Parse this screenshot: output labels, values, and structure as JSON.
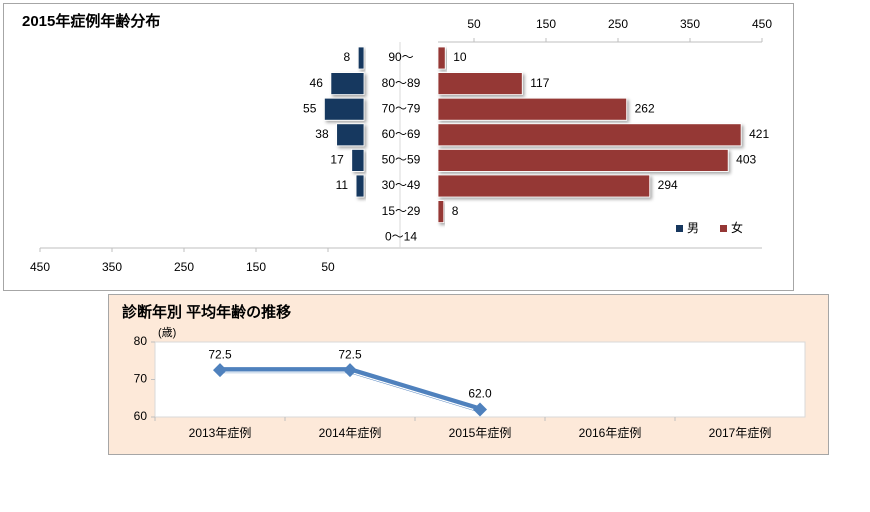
{
  "chart_data": [
    {
      "type": "pyramid",
      "title": "2015年症例年齢分布",
      "categories": [
        "90〜",
        "80〜89",
        "70〜79",
        "60〜69",
        "50〜59",
        "30〜49",
        "15〜29",
        "0〜14"
      ],
      "series": [
        {
          "name": "男",
          "color": "#17375e",
          "values": [
            8,
            46,
            55,
            38,
            17,
            11,
            null,
            null
          ]
        },
        {
          "name": "女",
          "color": "#953735",
          "values": [
            10,
            117,
            262,
            421,
            403,
            294,
            8,
            null
          ]
        }
      ],
      "xlim": [
        0,
        450
      ],
      "xticks": [
        50,
        150,
        250,
        350,
        450
      ],
      "legend": "lower right"
    },
    {
      "type": "line",
      "title": "診断年別  平均年齢の推移",
      "ylabel": "(歳)",
      "categories": [
        "2013年症例",
        "2014年症例",
        "2015年症例",
        "2016年症例",
        "2017年症例"
      ],
      "values": [
        72.5,
        72.5,
        62.0,
        null,
        null
      ],
      "value_labels": [
        "72.5",
        "72.5",
        "62.0",
        null,
        null
      ],
      "color": "#4f81bd",
      "ylim": [
        60,
        80
      ],
      "yticks": [
        60,
        70,
        80
      ]
    }
  ]
}
